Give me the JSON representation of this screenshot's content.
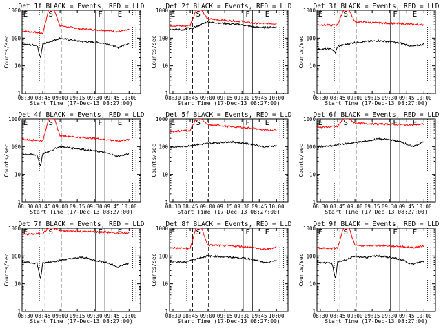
{
  "common": {
    "xlabel": "Start Time (17-Dec-13 08:27:00)",
    "ylabel": "Counts/sec",
    "xtick_labels": [
      "08:30",
      "08:45",
      "09:00",
      "09:15",
      "09:30",
      "09:45",
      "10:00"
    ],
    "ytick_labels": [
      "1",
      "10",
      "100",
      "1000"
    ],
    "markers": [
      "E",
      "S",
      "F",
      "E"
    ]
  },
  "colors": {
    "events": "#000000",
    "lld": "#ff0000"
  },
  "chart_data": [
    {
      "type": "line",
      "title": "Det 1f BLACK = Events, RED = LLD",
      "xlabel": "Start Time (17-Dec-13 08:27:00)",
      "ylabel": "Counts/sec",
      "y_scale": "log",
      "ylim": [
        1,
        1000
      ],
      "series": [
        {
          "name": "LLD",
          "color": "#ff0000",
          "points": [
            [
              "08:27",
              180
            ],
            [
              "08:40",
              160
            ],
            [
              "08:45",
              150
            ],
            [
              "08:50",
              1000
            ],
            [
              "08:55",
              1000
            ],
            [
              "09:00",
              280
            ],
            [
              "09:10",
              240
            ],
            [
              "09:20",
              210
            ],
            [
              "09:30",
              200
            ],
            [
              "09:40",
              190
            ],
            [
              "09:50",
              170
            ],
            [
              "10:00",
              200
            ]
          ]
        },
        {
          "name": "Events",
          "color": "#000000",
          "points": [
            [
              "08:27",
              60
            ],
            [
              "08:40",
              55
            ],
            [
              "08:43",
              20
            ],
            [
              "08:45",
              60
            ],
            [
              "09:00",
              100
            ],
            [
              "09:10",
              85
            ],
            [
              "09:20",
              75
            ],
            [
              "09:30",
              70
            ],
            [
              "09:40",
              65
            ],
            [
              "09:50",
              45
            ],
            [
              "10:00",
              65
            ]
          ]
        }
      ]
    },
    {
      "type": "line",
      "title": "Det 2f BLACK = Events, RED = LLD",
      "xlabel": "Start Time (17-Dec-13 08:27:00)",
      "ylabel": "Counts/sec",
      "y_scale": "log",
      "ylim": [
        1,
        1000
      ],
      "series": [
        {
          "name": "LLD",
          "color": "#ff0000",
          "points": [
            [
              "08:27",
              280
            ],
            [
              "08:40",
              270
            ],
            [
              "08:45",
              290
            ],
            [
              "08:50",
              1000
            ],
            [
              "08:55",
              1000
            ],
            [
              "09:00",
              500
            ],
            [
              "09:10",
              450
            ],
            [
              "09:20",
              420
            ],
            [
              "09:30",
              400
            ],
            [
              "09:40",
              340
            ],
            [
              "09:50",
              330
            ],
            [
              "10:00",
              330
            ]
          ]
        },
        {
          "name": "Events",
          "color": "#000000",
          "points": [
            [
              "08:27",
              210
            ],
            [
              "08:40",
              200
            ],
            [
              "08:43",
              230
            ],
            [
              "08:45",
              210
            ],
            [
              "09:00",
              380
            ],
            [
              "09:10",
              350
            ],
            [
              "09:20",
              320
            ],
            [
              "09:30",
              300
            ],
            [
              "09:40",
              250
            ],
            [
              "09:50",
              240
            ],
            [
              "10:00",
              250
            ]
          ]
        }
      ]
    },
    {
      "type": "line",
      "title": "Det 3f BLACK = Events, RED = LLD",
      "xlabel": "Start Time (17-Dec-13 08:27:00)",
      "ylabel": "Counts/sec",
      "y_scale": "log",
      "ylim": [
        1,
        1000
      ],
      "series": [
        {
          "name": "LLD",
          "color": "#ff0000",
          "points": [
            [
              "08:27",
              300
            ],
            [
              "08:40",
              290
            ],
            [
              "08:45",
              300
            ],
            [
              "08:50",
              1000
            ],
            [
              "08:55",
              1000
            ],
            [
              "09:00",
              380
            ],
            [
              "09:10",
              370
            ],
            [
              "09:20",
              350
            ],
            [
              "09:30",
              340
            ],
            [
              "09:40",
              330
            ],
            [
              "09:50",
              310
            ],
            [
              "10:00",
              300
            ]
          ]
        },
        {
          "name": "Events",
          "color": "#000000",
          "points": [
            [
              "08:27",
              40
            ],
            [
              "08:40",
              40
            ],
            [
              "08:43",
              30
            ],
            [
              "08:45",
              50
            ],
            [
              "09:00",
              70
            ],
            [
              "09:10",
              75
            ],
            [
              "09:20",
              80
            ],
            [
              "09:30",
              75
            ],
            [
              "09:40",
              65
            ],
            [
              "09:50",
              50
            ],
            [
              "10:00",
              60
            ]
          ]
        }
      ]
    },
    {
      "type": "line",
      "title": "Det 4f BLACK = Events, RED = LLD",
      "xlabel": "Start Time (17-Dec-13 08:27:00)",
      "ylabel": "Counts/sec",
      "y_scale": "log",
      "ylim": [
        1,
        1000
      ],
      "series": [
        {
          "name": "LLD",
          "color": "#ff0000",
          "points": [
            [
              "08:27",
              180
            ],
            [
              "08:40",
              170
            ],
            [
              "08:45",
              160
            ],
            [
              "08:50",
              1000
            ],
            [
              "08:55",
              1000
            ],
            [
              "09:00",
              250
            ],
            [
              "09:10",
              230
            ],
            [
              "09:20",
              210
            ],
            [
              "09:30",
              200
            ],
            [
              "09:40",
              180
            ],
            [
              "09:50",
              160
            ],
            [
              "10:00",
              180
            ]
          ]
        },
        {
          "name": "Events",
          "color": "#000000",
          "points": [
            [
              "08:27",
              55
            ],
            [
              "08:40",
              50
            ],
            [
              "08:43",
              20
            ],
            [
              "08:45",
              55
            ],
            [
              "09:00",
              100
            ],
            [
              "09:10",
              90
            ],
            [
              "09:20",
              80
            ],
            [
              "09:30",
              70
            ],
            [
              "09:40",
              60
            ],
            [
              "09:50",
              45
            ],
            [
              "10:00",
              55
            ]
          ]
        }
      ]
    },
    {
      "type": "line",
      "title": "Det 5f BLACK = Events, RED = LLD",
      "xlabel": "Start Time (17-Dec-13 08:27:00)",
      "ylabel": "Counts/sec",
      "y_scale": "log",
      "ylim": [
        1,
        1000
      ],
      "series": [
        {
          "name": "LLD",
          "color": "#ff0000",
          "points": [
            [
              "08:27",
              350
            ],
            [
              "08:40",
              380
            ],
            [
              "08:45",
              390
            ],
            [
              "08:50",
              1000
            ],
            [
              "08:55",
              1000
            ],
            [
              "09:00",
              600
            ],
            [
              "09:10",
              580
            ],
            [
              "09:20",
              520
            ],
            [
              "09:30",
              500
            ],
            [
              "09:40",
              460
            ],
            [
              "09:50",
              390
            ],
            [
              "10:00",
              400
            ]
          ]
        },
        {
          "name": "Events",
          "color": "#000000",
          "points": [
            [
              "08:27",
              95
            ],
            [
              "08:40",
              100
            ],
            [
              "08:43",
              105
            ],
            [
              "08:45",
              110
            ],
            [
              "09:00",
              130
            ],
            [
              "09:10",
              140
            ],
            [
              "09:20",
              150
            ],
            [
              "09:30",
              135
            ],
            [
              "09:40",
              120
            ],
            [
              "09:50",
              95
            ],
            [
              "10:00",
              110
            ]
          ]
        }
      ]
    },
    {
      "type": "line",
      "title": "Det 6f BLACK = Events, RED = LLD",
      "xlabel": "Start Time (17-Dec-13 08:27:00)",
      "ylabel": "Counts/sec",
      "y_scale": "log",
      "ylim": [
        1,
        1000
      ],
      "series": [
        {
          "name": "LLD",
          "color": "#ff0000",
          "points": [
            [
              "08:27",
              500
            ],
            [
              "08:40",
              520
            ],
            [
              "08:45",
              530
            ],
            [
              "08:50",
              1000
            ],
            [
              "08:55",
              1000
            ],
            [
              "09:00",
              700
            ],
            [
              "09:10",
              680
            ],
            [
              "09:20",
              650
            ],
            [
              "09:30",
              640
            ],
            [
              "09:40",
              620
            ],
            [
              "09:50",
              600
            ],
            [
              "10:00",
              650
            ]
          ]
        },
        {
          "name": "Events",
          "color": "#000000",
          "points": [
            [
              "08:27",
              100
            ],
            [
              "08:40",
              105
            ],
            [
              "08:43",
              110
            ],
            [
              "08:45",
              120
            ],
            [
              "09:00",
              140
            ],
            [
              "09:10",
              160
            ],
            [
              "09:20",
              190
            ],
            [
              "09:30",
              180
            ],
            [
              "09:40",
              150
            ],
            [
              "09:50",
              100
            ],
            [
              "10:00",
              150
            ]
          ]
        }
      ]
    },
    {
      "type": "line",
      "title": "Det 7f BLACK = Events, RED = LLD",
      "xlabel": "Start Time (17-Dec-13 08:27:00)",
      "ylabel": "Counts/sec",
      "y_scale": "log",
      "ylim": [
        1,
        1000
      ],
      "series": [
        {
          "name": "LLD",
          "color": "#ff0000",
          "points": [
            [
              "08:27",
              600
            ],
            [
              "08:40",
              620
            ],
            [
              "08:45",
              650
            ],
            [
              "08:50",
              1000
            ],
            [
              "08:55",
              1000
            ],
            [
              "09:00",
              800
            ],
            [
              "09:10",
              780
            ],
            [
              "09:20",
              760
            ],
            [
              "09:30",
              740
            ],
            [
              "09:40",
              720
            ],
            [
              "09:50",
              650
            ],
            [
              "10:00",
              700
            ]
          ]
        },
        {
          "name": "Events",
          "color": "#000000",
          "points": [
            [
              "08:27",
              60
            ],
            [
              "08:40",
              55
            ],
            [
              "08:43",
              15
            ],
            [
              "08:45",
              55
            ],
            [
              "09:00",
              70
            ],
            [
              "09:10",
              80
            ],
            [
              "09:20",
              90
            ],
            [
              "09:30",
              70
            ],
            [
              "09:40",
              60
            ],
            [
              "09:50",
              40
            ],
            [
              "10:00",
              55
            ]
          ]
        }
      ]
    },
    {
      "type": "line",
      "title": "Det 8f BLACK = Events, RED = LLD",
      "xlabel": "Start Time (17-Dec-13 08:27:00)",
      "ylabel": "Counts/sec",
      "y_scale": "log",
      "ylim": [
        1,
        1000
      ],
      "series": [
        {
          "name": "LLD",
          "color": "#ff0000",
          "points": [
            [
              "08:27",
              200
            ],
            [
              "08:40",
              190
            ],
            [
              "08:45",
              190
            ],
            [
              "08:50",
              1000
            ],
            [
              "08:55",
              1000
            ],
            [
              "09:00",
              250
            ],
            [
              "09:10",
              240
            ],
            [
              "09:20",
              230
            ],
            [
              "09:30",
              220
            ],
            [
              "09:40",
              200
            ],
            [
              "09:50",
              170
            ],
            [
              "10:00",
              210
            ]
          ]
        },
        {
          "name": "Events",
          "color": "#000000",
          "points": [
            [
              "08:27",
              65
            ],
            [
              "08:40",
              60
            ],
            [
              "08:43",
              65
            ],
            [
              "08:45",
              70
            ],
            [
              "09:00",
              100
            ],
            [
              "09:10",
              95
            ],
            [
              "09:20",
              90
            ],
            [
              "09:30",
              85
            ],
            [
              "09:40",
              75
            ],
            [
              "09:50",
              55
            ],
            [
              "10:00",
              70
            ]
          ]
        }
      ]
    },
    {
      "type": "line",
      "title": "Det 9f BLACK = Events, RED = LLD",
      "xlabel": "Start Time (17-Dec-13 08:27:00)",
      "ylabel": "Counts/sec",
      "y_scale": "log",
      "ylim": [
        1,
        1000
      ],
      "series": [
        {
          "name": "LLD",
          "color": "#ff0000",
          "points": [
            [
              "08:27",
              200
            ],
            [
              "08:40",
              190
            ],
            [
              "08:45",
              200
            ],
            [
              "08:50",
              1000
            ],
            [
              "08:55",
              1000
            ],
            [
              "09:00",
              240
            ],
            [
              "09:10",
              230
            ],
            [
              "09:20",
              240
            ],
            [
              "09:30",
              230
            ],
            [
              "09:40",
              220
            ],
            [
              "09:50",
              200
            ],
            [
              "10:00",
              230
            ]
          ]
        },
        {
          "name": "Events",
          "color": "#000000",
          "points": [
            [
              "08:27",
              60
            ],
            [
              "08:40",
              55
            ],
            [
              "08:43",
              15
            ],
            [
              "08:45",
              60
            ],
            [
              "09:00",
              95
            ],
            [
              "09:10",
              90
            ],
            [
              "09:20",
              100
            ],
            [
              "09:30",
              90
            ],
            [
              "09:40",
              75
            ],
            [
              "09:50",
              50
            ],
            [
              "10:00",
              65
            ]
          ]
        }
      ]
    }
  ]
}
